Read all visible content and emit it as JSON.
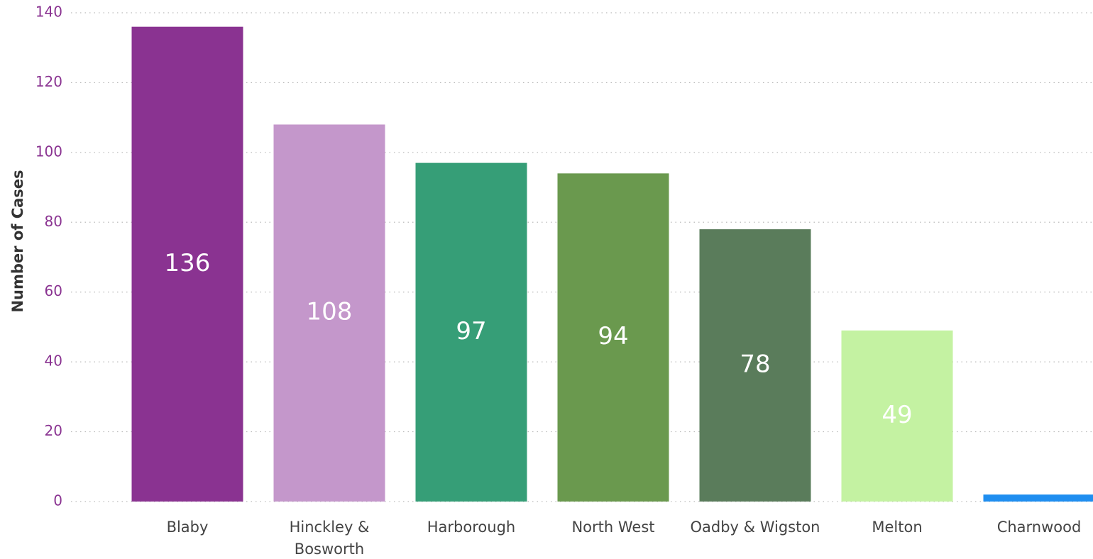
{
  "chart_data": {
    "type": "bar",
    "y_label": "Number of Cases",
    "categories": [
      "Blaby",
      "Hinckley & Bosworth",
      "Harborough",
      "North West",
      "Oadby & Wigston",
      "Melton",
      "Charnwood"
    ],
    "values": [
      136,
      108,
      97,
      94,
      78,
      49,
      2
    ],
    "colors": [
      "#8a3391",
      "#c497cb",
      "#369e77",
      "#6a994e",
      "#5a7c5b",
      "#c4f2a2",
      "#1f8ef0"
    ],
    "ylim": [
      0,
      140
    ],
    "yticks": [
      0,
      20,
      40,
      60,
      80,
      100,
      120,
      140
    ],
    "grid": true
  }
}
